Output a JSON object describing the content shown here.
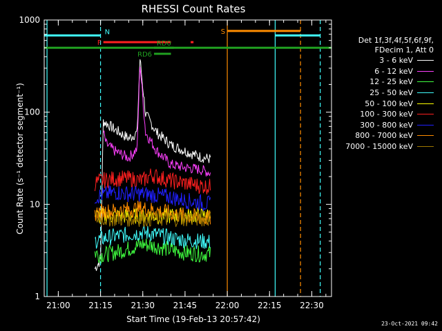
{
  "chart_data": {
    "type": "line",
    "title": "RHESSI Count Rates",
    "xlabel": "Start Time (19-Feb-13 20:57:42)",
    "ylabel": "Count Rate (s⁻¹ detector segment⁻¹)",
    "xlim": [
      "20:55",
      "22:37"
    ],
    "ylim": [
      1,
      1000
    ],
    "yscale": "log",
    "x_ticks": [
      "21:00",
      "21:15",
      "21:30",
      "21:45",
      "22:00",
      "22:15",
      "22:30"
    ],
    "y_ticks": [
      "1",
      "10",
      "100",
      "1000"
    ],
    "legend": {
      "placement": "right",
      "header": [
        "Det 1f,3f,4f,5f,6f,9f,",
        "FDecim 1, Att 0"
      ]
    },
    "series": [
      {
        "name": "3 - 6 keV",
        "color": "#ffffff",
        "x": [
          "21:13",
          "21:15",
          "21:16",
          "21:20",
          "21:25",
          "21:28",
          "21:29",
          "21:31",
          "21:35",
          "21:40",
          "21:45",
          "21:50",
          "21:54"
        ],
        "values": [
          2,
          2.5,
          80,
          65,
          52,
          60,
          380,
          95,
          60,
          44,
          38,
          33,
          31
        ]
      },
      {
        "name": "6 - 12 keV",
        "color": "#ff40ff",
        "x": [
          "21:16",
          "21:17",
          "21:20",
          "21:25",
          "21:28",
          "21:29",
          "21:31",
          "21:35",
          "21:40",
          "21:45",
          "21:50",
          "21:54"
        ],
        "values": [
          60,
          45,
          38,
          32,
          40,
          340,
          60,
          38,
          27,
          25,
          24,
          22
        ]
      },
      {
        "name": "12 - 25 keV",
        "color": "#40ff40",
        "x": [
          "21:13",
          "21:15",
          "21:20",
          "21:25",
          "21:30",
          "21:35",
          "21:40",
          "21:45",
          "21:50",
          "21:54"
        ],
        "values": [
          3.0,
          2.8,
          3.0,
          3.3,
          3.7,
          3.5,
          3.2,
          3.0,
          2.9,
          2.9
        ]
      },
      {
        "name": "25 - 50 keV",
        "color": "#40ffff",
        "x": [
          "21:13",
          "21:15",
          "21:20",
          "21:25",
          "21:30",
          "21:35",
          "21:40",
          "21:45",
          "21:50",
          "21:54"
        ],
        "values": [
          4.0,
          4.2,
          4.5,
          4.7,
          5.0,
          4.7,
          4.3,
          4.1,
          4.0,
          3.9
        ]
      },
      {
        "name": "50 - 100 keV",
        "color": "#ffff00",
        "x": [
          "21:13",
          "21:54"
        ],
        "values": [
          7.5,
          7.5
        ]
      },
      {
        "name": "100 - 300 keV",
        "color": "#ff2020",
        "x": [
          "21:13",
          "21:15",
          "21:20",
          "21:25",
          "21:30",
          "21:33",
          "21:35",
          "21:40",
          "21:45",
          "21:50",
          "21:54"
        ],
        "values": [
          17,
          18,
          19,
          19,
          18,
          21,
          20,
          18,
          17,
          16,
          15.5
        ]
      },
      {
        "name": "300 - 800 keV",
        "color": "#2020ff",
        "x": [
          "21:13",
          "21:15",
          "21:20",
          "21:25",
          "21:30",
          "21:35",
          "21:40",
          "21:45",
          "21:50",
          "21:54"
        ],
        "values": [
          12,
          12.5,
          13.5,
          13,
          13,
          12.5,
          12,
          11,
          10.5,
          10
        ]
      },
      {
        "name": "800 - 7000 keV",
        "color": "#ff8c00",
        "x": [
          "21:13",
          "21:15",
          "21:20",
          "21:25",
          "21:30",
          "21:35",
          "21:40",
          "21:45",
          "21:50",
          "21:54"
        ],
        "values": [
          8,
          8.3,
          8.5,
          8.8,
          9.0,
          8.6,
          8.0,
          7.5,
          7.2,
          7.0
        ]
      },
      {
        "name": "7000 - 15000 keV",
        "color": "#a07800",
        "x": [
          "21:13",
          "21:54"
        ],
        "values": [
          7.0,
          7.0
        ]
      }
    ],
    "flags": [
      {
        "label": "N",
        "color": "#40ffff",
        "segments": [
          [
            "20:55",
            "21:15"
          ],
          [
            "22:17",
            "22:33"
          ]
        ],
        "y": 680
      },
      {
        "label": "F",
        "color": "#ff2020",
        "segments": [
          [
            "21:16",
            "21:40"
          ],
          [
            "21:47",
            "21:48"
          ]
        ],
        "y": 575
      },
      {
        "label": "S",
        "color": "#ff8c00",
        "segments": [
          [
            "22:00",
            "22:26"
          ]
        ],
        "y": 760
      },
      {
        "label": "RD0",
        "color": "#20a020",
        "segments": [
          [
            "21:34",
            "21:41"
          ]
        ],
        "y": 500
      },
      {
        "label": "RD6",
        "color": "#20a020",
        "segments": [
          [
            "21:34",
            "21:40"
          ]
        ],
        "y": 430
      },
      {
        "label": "",
        "color": "#20a020",
        "segments": [
          [
            "20:55",
            "22:37"
          ]
        ],
        "y": 500
      }
    ],
    "vlines": [
      {
        "x": "20:56",
        "color": "#40ffff",
        "style": "solid"
      },
      {
        "x": "21:15",
        "color": "#40ffff",
        "style": "dashed"
      },
      {
        "x": "22:00",
        "color": "#ff8c00",
        "style": "solid"
      },
      {
        "x": "22:17",
        "color": "#40ffff",
        "style": "solid"
      },
      {
        "x": "22:26",
        "color": "#ff8c00",
        "style": "dashed"
      },
      {
        "x": "22:33",
        "color": "#40ffff",
        "style": "dashed"
      }
    ]
  },
  "timestamp": "23-Oct-2021 09:42"
}
